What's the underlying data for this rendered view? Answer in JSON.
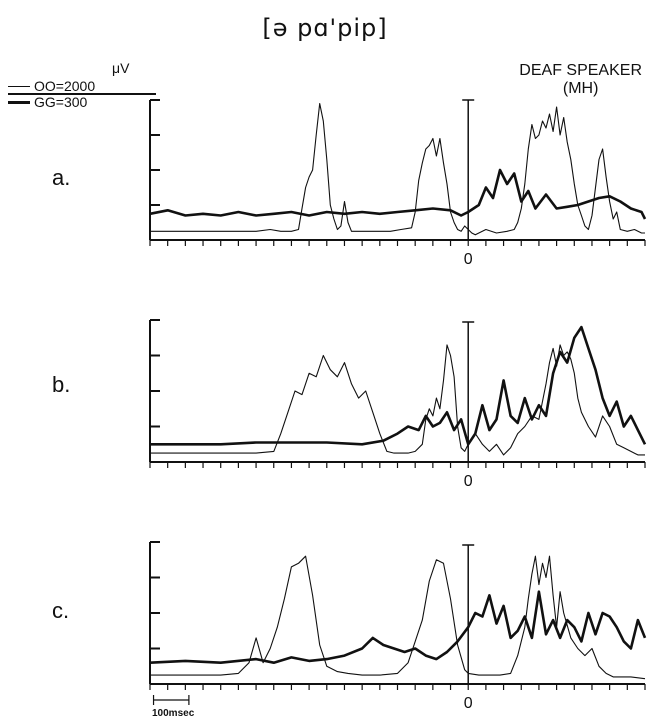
{
  "title": "[ə pɑ'pip]",
  "legend": {
    "unit": "μV",
    "thin": "OO=2000",
    "thick": "GG=300"
  },
  "speaker": {
    "line1": "DEAF SPEAKER",
    "line2": "(MH)"
  },
  "timescale_label": "100msec",
  "colors": {
    "ink": "#111111",
    "background": "#ffffff"
  },
  "chart_data": [
    {
      "type": "line",
      "panel_label": "a.",
      "zero_label": "0",
      "ylim": [
        0,
        4
      ],
      "xlim": [
        -0.9,
        0.5
      ],
      "series": [
        {
          "name": "OO",
          "x": [
            -0.9,
            -0.84,
            -0.78,
            -0.72,
            -0.66,
            -0.6,
            -0.56,
            -0.53,
            -0.5,
            -0.48,
            -0.47,
            -0.46,
            -0.45,
            -0.44,
            -0.43,
            -0.42,
            -0.41,
            -0.4,
            -0.39,
            -0.38,
            -0.37,
            -0.36,
            -0.35,
            -0.34,
            -0.33,
            -0.32,
            -0.31,
            -0.3,
            -0.26,
            -0.22,
            -0.19,
            -0.16,
            -0.15,
            -0.14,
            -0.13,
            -0.12,
            -0.11,
            -0.1,
            -0.09,
            -0.08,
            -0.07,
            -0.06,
            -0.05,
            -0.04,
            -0.03,
            -0.02,
            -0.01,
            0,
            0.01,
            0.02,
            0.05,
            0.08,
            0.11,
            0.13,
            0.14,
            0.15,
            0.16,
            0.17,
            0.18,
            0.19,
            0.2,
            0.21,
            0.22,
            0.23,
            0.24,
            0.25,
            0.26,
            0.27,
            0.28,
            0.29,
            0.3,
            0.31,
            0.32,
            0.33,
            0.34,
            0.35,
            0.36,
            0.37,
            0.38,
            0.39,
            0.4,
            0.41,
            0.42,
            0.43,
            0.45,
            0.47,
            0.49,
            0.5
          ],
          "y": [
            0.25,
            0.25,
            0.25,
            0.25,
            0.25,
            0.25,
            0.3,
            0.25,
            0.25,
            0.3,
            0.9,
            1.5,
            1.8,
            2.0,
            3.0,
            3.9,
            3.4,
            2.3,
            1.0,
            0.6,
            0.3,
            0.4,
            1.1,
            0.5,
            0.25,
            0.25,
            0.25,
            0.25,
            0.25,
            0.25,
            0.3,
            0.35,
            0.8,
            1.7,
            2.2,
            2.6,
            2.7,
            2.9,
            2.4,
            2.9,
            2.2,
            1.6,
            0.8,
            0.5,
            0.3,
            0.25,
            0.4,
            0.3,
            0.2,
            0.15,
            0.3,
            0.2,
            0.25,
            0.3,
            0.5,
            0.9,
            1.6,
            2.6,
            3.3,
            2.9,
            3.0,
            3.4,
            3.2,
            3.6,
            3.1,
            3.8,
            3.0,
            3.5,
            2.8,
            2.3,
            1.6,
            1.0,
            0.7,
            0.4,
            0.3,
            0.7,
            1.5,
            2.3,
            2.6,
            1.8,
            1.1,
            0.6,
            0.8,
            0.3,
            0.25,
            0.3,
            0.2,
            0.2
          ]
        },
        {
          "name": "GG",
          "x": [
            -0.9,
            -0.85,
            -0.8,
            -0.75,
            -0.7,
            -0.65,
            -0.6,
            -0.55,
            -0.5,
            -0.45,
            -0.4,
            -0.35,
            -0.3,
            -0.25,
            -0.2,
            -0.15,
            -0.1,
            -0.05,
            -0.02,
            0,
            0.03,
            0.05,
            0.07,
            0.09,
            0.11,
            0.13,
            0.15,
            0.17,
            0.19,
            0.22,
            0.25,
            0.28,
            0.31,
            0.34,
            0.37,
            0.4,
            0.43,
            0.46,
            0.49,
            0.5
          ],
          "y": [
            0.75,
            0.85,
            0.7,
            0.75,
            0.7,
            0.8,
            0.7,
            0.75,
            0.8,
            0.7,
            0.8,
            0.75,
            0.8,
            0.75,
            0.8,
            0.85,
            0.9,
            0.85,
            0.7,
            0.8,
            1.0,
            1.5,
            1.2,
            2.0,
            1.6,
            1.9,
            1.1,
            1.4,
            0.9,
            1.3,
            0.9,
            0.95,
            1.0,
            1.1,
            1.2,
            1.25,
            1.1,
            0.9,
            0.8,
            0.6
          ]
        }
      ]
    },
    {
      "type": "line",
      "panel_label": "b.",
      "zero_label": "0",
      "ylim": [
        0,
        4
      ],
      "xlim": [
        -0.9,
        0.5
      ],
      "series": [
        {
          "name": "OO",
          "x": [
            -0.9,
            -0.8,
            -0.7,
            -0.6,
            -0.55,
            -0.53,
            -0.51,
            -0.49,
            -0.47,
            -0.45,
            -0.43,
            -0.41,
            -0.39,
            -0.37,
            -0.35,
            -0.33,
            -0.31,
            -0.29,
            -0.27,
            -0.25,
            -0.23,
            -0.21,
            -0.19,
            -0.17,
            -0.15,
            -0.13,
            -0.12,
            -0.11,
            -0.1,
            -0.09,
            -0.08,
            -0.07,
            -0.06,
            -0.05,
            -0.04,
            -0.03,
            -0.02,
            -0.01,
            0,
            0.02,
            0.04,
            0.06,
            0.08,
            0.1,
            0.12,
            0.14,
            0.16,
            0.18,
            0.2,
            0.22,
            0.23,
            0.24,
            0.25,
            0.26,
            0.27,
            0.28,
            0.29,
            0.3,
            0.31,
            0.32,
            0.34,
            0.36,
            0.38,
            0.4,
            0.42,
            0.44,
            0.46,
            0.48,
            0.5
          ],
          "y": [
            0.25,
            0.25,
            0.25,
            0.25,
            0.3,
            0.8,
            1.4,
            2.0,
            1.9,
            2.5,
            2.4,
            3.0,
            2.6,
            2.4,
            2.8,
            2.2,
            1.8,
            2.0,
            1.4,
            0.8,
            0.3,
            0.25,
            0.25,
            0.25,
            0.3,
            0.5,
            1.2,
            1.5,
            1.3,
            1.8,
            1.5,
            2.3,
            3.3,
            3.0,
            2.4,
            1.0,
            0.4,
            0.3,
            0.5,
            0.8,
            0.5,
            0.3,
            0.5,
            0.2,
            0.4,
            0.8,
            1.0,
            1.3,
            1.2,
            2.2,
            2.8,
            3.2,
            2.7,
            3.3,
            3.0,
            3.1,
            2.9,
            2.5,
            1.8,
            1.4,
            1.0,
            0.7,
            1.3,
            1.0,
            0.5,
            0.4,
            0.3,
            0.2,
            0.2
          ]
        },
        {
          "name": "GG",
          "x": [
            -0.9,
            -0.8,
            -0.7,
            -0.6,
            -0.5,
            -0.4,
            -0.3,
            -0.24,
            -0.2,
            -0.17,
            -0.14,
            -0.12,
            -0.1,
            -0.08,
            -0.06,
            -0.04,
            -0.02,
            0,
            0.02,
            0.04,
            0.06,
            0.08,
            0.1,
            0.12,
            0.14,
            0.16,
            0.18,
            0.2,
            0.22,
            0.24,
            0.26,
            0.28,
            0.3,
            0.32,
            0.34,
            0.36,
            0.38,
            0.4,
            0.42,
            0.44,
            0.46,
            0.48,
            0.5
          ],
          "y": [
            0.5,
            0.5,
            0.5,
            0.55,
            0.55,
            0.55,
            0.5,
            0.6,
            0.8,
            1.0,
            0.9,
            1.3,
            1.0,
            1.1,
            1.4,
            0.9,
            1.2,
            0.5,
            0.8,
            1.6,
            0.9,
            1.2,
            2.3,
            1.3,
            1.1,
            1.8,
            1.2,
            1.6,
            1.3,
            2.5,
            3.1,
            2.8,
            3.5,
            3.8,
            3.2,
            2.6,
            1.8,
            1.3,
            1.7,
            1.0,
            1.3,
            0.9,
            0.5
          ]
        }
      ]
    },
    {
      "type": "line",
      "panel_label": "c.",
      "zero_label": "0",
      "ylim": [
        0,
        4
      ],
      "xlim": [
        -0.9,
        0.5
      ],
      "series": [
        {
          "name": "OO",
          "x": [
            -0.9,
            -0.8,
            -0.7,
            -0.65,
            -0.62,
            -0.6,
            -0.58,
            -0.56,
            -0.54,
            -0.52,
            -0.5,
            -0.48,
            -0.46,
            -0.44,
            -0.42,
            -0.4,
            -0.37,
            -0.34,
            -0.3,
            -0.25,
            -0.2,
            -0.17,
            -0.15,
            -0.13,
            -0.11,
            -0.09,
            -0.07,
            -0.05,
            -0.03,
            -0.01,
            0,
            0.03,
            0.06,
            0.09,
            0.12,
            0.14,
            0.16,
            0.17,
            0.18,
            0.19,
            0.2,
            0.21,
            0.22,
            0.23,
            0.24,
            0.25,
            0.26,
            0.27,
            0.29,
            0.31,
            0.33,
            0.35,
            0.37,
            0.39,
            0.41,
            0.43,
            0.46,
            0.5
          ],
          "y": [
            0.25,
            0.25,
            0.25,
            0.3,
            0.6,
            1.3,
            0.6,
            1.0,
            1.6,
            2.4,
            3.3,
            3.4,
            3.6,
            2.5,
            1.1,
            0.5,
            0.35,
            0.3,
            0.25,
            0.25,
            0.3,
            0.6,
            1.2,
            1.8,
            2.9,
            3.5,
            3.4,
            2.4,
            1.1,
            0.4,
            0.3,
            0.25,
            0.25,
            0.25,
            0.3,
            0.8,
            1.6,
            2.4,
            3.1,
            3.6,
            2.8,
            3.4,
            3.0,
            3.6,
            2.5,
            1.6,
            2.6,
            2.0,
            1.3,
            1.0,
            0.8,
            1.0,
            0.5,
            0.3,
            0.2,
            0.2,
            0.2,
            0.15
          ]
        },
        {
          "name": "GG",
          "x": [
            -0.9,
            -0.8,
            -0.7,
            -0.6,
            -0.55,
            -0.5,
            -0.45,
            -0.4,
            -0.35,
            -0.3,
            -0.27,
            -0.24,
            -0.21,
            -0.18,
            -0.15,
            -0.12,
            -0.09,
            -0.06,
            -0.03,
            0,
            0.02,
            0.04,
            0.06,
            0.08,
            0.1,
            0.12,
            0.14,
            0.16,
            0.18,
            0.2,
            0.22,
            0.24,
            0.26,
            0.28,
            0.3,
            0.32,
            0.34,
            0.36,
            0.38,
            0.4,
            0.42,
            0.44,
            0.46,
            0.48,
            0.5
          ],
          "y": [
            0.6,
            0.65,
            0.6,
            0.7,
            0.6,
            0.75,
            0.65,
            0.7,
            0.8,
            1.0,
            1.3,
            1.1,
            1.0,
            0.9,
            1.0,
            0.8,
            0.7,
            0.9,
            1.2,
            1.6,
            2.0,
            1.9,
            2.5,
            1.7,
            2.2,
            1.3,
            1.5,
            1.9,
            1.3,
            2.6,
            1.4,
            1.8,
            1.3,
            1.8,
            1.6,
            1.2,
            2.0,
            1.4,
            2.0,
            1.9,
            1.6,
            1.2,
            1.0,
            1.8,
            1.3
          ]
        }
      ]
    }
  ]
}
